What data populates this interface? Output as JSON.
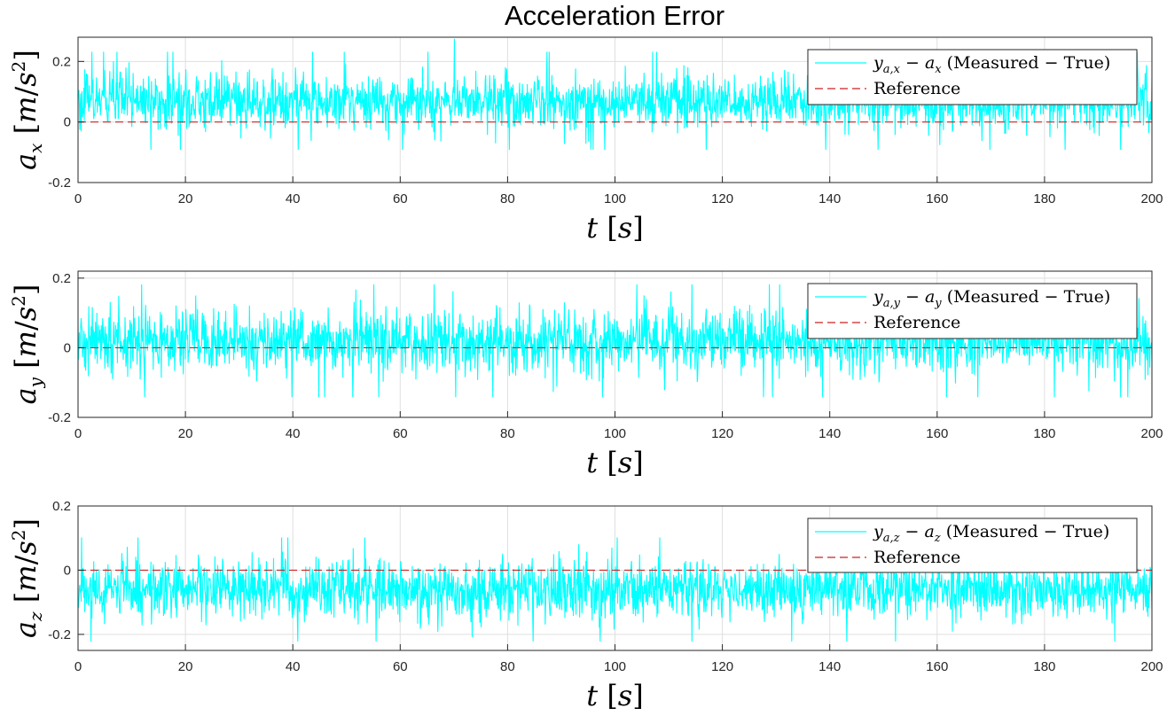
{
  "chart_data": {
    "title": "Acceleration Error",
    "subplots": [
      {
        "type": "line",
        "ylabel": "a_x [m/s^2]",
        "ylabel_parts": [
          "a",
          "x",
          "[m/s",
          "2",
          "]"
        ],
        "xlabel": "t [s]",
        "xlim": [
          0,
          200
        ],
        "ylim": [
          -0.2,
          0.28
        ],
        "xticks": [
          0,
          20,
          40,
          60,
          80,
          100,
          120,
          140,
          160,
          180,
          200
        ],
        "yticks": [
          -0.2,
          0,
          0.2
        ],
        "ytick_labels": [
          "-0.2",
          "0",
          "0.2"
        ],
        "grid": true,
        "legend_position": "top-right",
        "series": [
          {
            "name": "y_{a,x} − a_x (Measured − True)",
            "legend_parts": [
              "y",
              "a,x",
              " − a",
              "x",
              " (Measured − True)"
            ],
            "color": "#00ffff",
            "style": "solid",
            "mean": 0.07,
            "std": 0.045,
            "min_seen": -0.13,
            "max_seen": 0.275,
            "samples": 20001
          },
          {
            "name": "Reference",
            "color": "#cc2222",
            "style": "dashed",
            "value": 0
          }
        ]
      },
      {
        "type": "line",
        "ylabel": "a_y [m/s^2]",
        "ylabel_parts": [
          "a",
          "y",
          "[m/s",
          "2",
          "]"
        ],
        "xlabel": "t [s]",
        "xlim": [
          0,
          200
        ],
        "ylim": [
          -0.2,
          0.22
        ],
        "xticks": [
          0,
          20,
          40,
          60,
          80,
          100,
          120,
          140,
          160,
          180,
          200
        ],
        "yticks": [
          -0.2,
          0,
          0.2
        ],
        "ytick_labels": [
          "-0.2",
          "0",
          "0.2"
        ],
        "grid": true,
        "legend_position": "top-right",
        "series": [
          {
            "name": "y_{a,y} − a_y (Measured − True)",
            "legend_parts": [
              "y",
              "a,y",
              " − a",
              "y",
              " (Measured − True)"
            ],
            "color": "#00ffff",
            "style": "solid",
            "mean": 0.02,
            "std": 0.045,
            "min_seen": -0.17,
            "max_seen": 0.21,
            "samples": 20001
          },
          {
            "name": "Reference",
            "color": "#cc2222",
            "style": "dashed",
            "value": 0
          }
        ]
      },
      {
        "type": "line",
        "ylabel": "a_z [m/s^2]",
        "ylabel_parts": [
          "a",
          "z",
          "[m/s",
          "2",
          "]"
        ],
        "xlabel": "t [s]",
        "xlim": [
          0,
          200
        ],
        "ylim": [
          -0.25,
          0.2
        ],
        "xticks": [
          0,
          20,
          40,
          60,
          80,
          100,
          120,
          140,
          160,
          180,
          200
        ],
        "yticks": [
          -0.2,
          0,
          0.2
        ],
        "ytick_labels": [
          "-0.2",
          "0",
          "0.2"
        ],
        "grid": true,
        "legend_position": "top-right",
        "series": [
          {
            "name": "y_{a,z} − a_z (Measured − True)",
            "legend_parts": [
              "y",
              "a,z",
              " − a",
              "z",
              " (Measured − True)"
            ],
            "color": "#00ffff",
            "style": "solid",
            "mean": -0.06,
            "std": 0.045,
            "min_seen": -0.25,
            "max_seen": 0.15,
            "samples": 20001
          },
          {
            "name": "Reference",
            "color": "#cc2222",
            "style": "dashed",
            "value": 0
          }
        ]
      }
    ]
  }
}
